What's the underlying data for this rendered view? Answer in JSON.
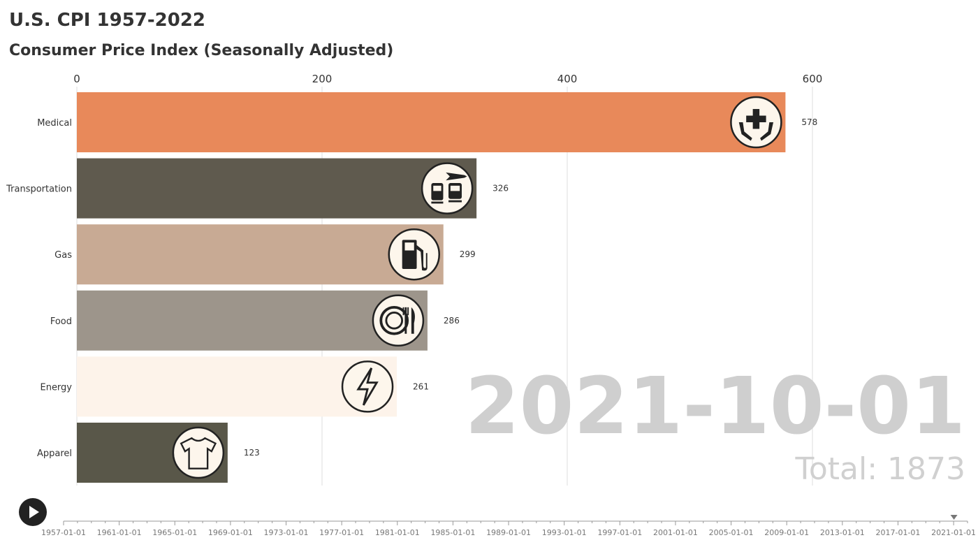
{
  "title": "U.S. CPI 1957-2022",
  "subtitle": "Consumer Price Index (Seasonally Adjusted)",
  "chart_data": {
    "type": "bar",
    "orientation": "horizontal",
    "categories": [
      "Medical",
      "Transportation",
      "Gas",
      "Food",
      "Energy",
      "Apparel"
    ],
    "values": [
      578,
      326,
      299,
      286,
      261,
      123
    ],
    "value_labels": [
      "578",
      "326",
      "299",
      "286",
      "261",
      "123"
    ],
    "colors": [
      "#e8895a",
      "#5f5a4e",
      "#c8aa94",
      "#9d958b",
      "#fdf3ea",
      "#595749"
    ],
    "icons": [
      "medical-cross-hands-icon",
      "train-plane-bus-icon",
      "fuel-pump-icon",
      "plate-fork-knife-icon",
      "lightning-bolt-icon",
      "t-shirt-icon"
    ],
    "xticks": [
      0,
      200,
      400,
      600
    ],
    "xtick_labels": [
      "0",
      "200",
      "400",
      "600"
    ],
    "xlim": [
      0,
      640
    ],
    "grid": true,
    "current_date": "2021-10-01",
    "total_label": "Total: 1873",
    "timeline_labels": [
      "1957-01-01",
      "1961-01-01",
      "1965-01-01",
      "1969-01-01",
      "1973-01-01",
      "1977-01-01",
      "1981-01-01",
      "1985-01-01",
      "1989-01-01",
      "1993-01-01",
      "1997-01-01",
      "2001-01-01",
      "2005-01-01",
      "2009-01-01",
      "2013-01-01",
      "2017-01-01",
      "2021-01-01"
    ],
    "timeline_progress": 0.985
  },
  "controls": {
    "play_icon": "play-icon"
  }
}
